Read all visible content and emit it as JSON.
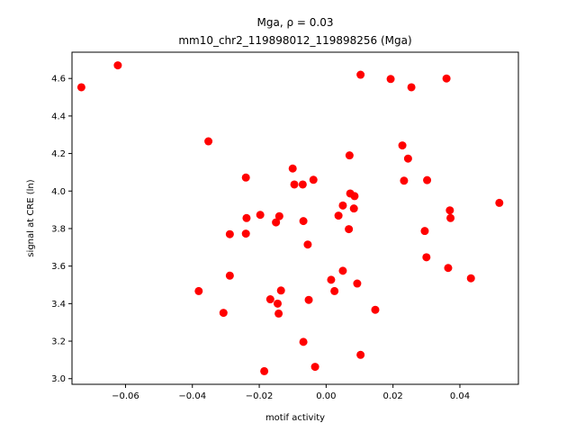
{
  "chart_data": {
    "type": "scatter",
    "title_line1": "Mga, ρ = 0.03",
    "title_line2": "mm10_chr2_119898012_119898256 (Mga)",
    "xlabel": "motif activity",
    "ylabel": "signal at CRE (ln)",
    "xlim": [
      -0.076,
      0.0575
    ],
    "ylim": [
      2.97,
      4.74
    ],
    "xticks": [
      -0.06,
      -0.04,
      -0.02,
      0.0,
      0.02,
      0.04
    ],
    "xtick_labels": [
      "−0.06",
      "−0.04",
      "−0.02",
      "0.00",
      "0.02",
      "0.04"
    ],
    "yticks": [
      3.0,
      3.2,
      3.4,
      3.6,
      3.8,
      4.0,
      4.2,
      4.4,
      4.6
    ],
    "ytick_labels": [
      "3.0",
      "3.2",
      "3.4",
      "3.6",
      "3.8",
      "4.0",
      "4.2",
      "4.4",
      "4.6"
    ],
    "grid": false,
    "marker_color": "#ff0000",
    "points": [
      {
        "x": -0.0732,
        "y": 4.553
      },
      {
        "x": -0.0623,
        "y": 4.67
      },
      {
        "x": -0.0352,
        "y": 4.265
      },
      {
        "x": -0.0381,
        "y": 3.467
      },
      {
        "x": -0.0307,
        "y": 3.351
      },
      {
        "x": -0.0288,
        "y": 3.77
      },
      {
        "x": -0.0288,
        "y": 3.549
      },
      {
        "x": -0.024,
        "y": 4.072
      },
      {
        "x": -0.0238,
        "y": 3.856
      },
      {
        "x": -0.024,
        "y": 3.773
      },
      {
        "x": -0.0197,
        "y": 3.873
      },
      {
        "x": -0.0185,
        "y": 3.04
      },
      {
        "x": -0.0167,
        "y": 3.423
      },
      {
        "x": -0.015,
        "y": 3.833
      },
      {
        "x": -0.0145,
        "y": 3.4
      },
      {
        "x": -0.0142,
        "y": 3.347
      },
      {
        "x": -0.014,
        "y": 3.866
      },
      {
        "x": -0.0135,
        "y": 3.47
      },
      {
        "x": -0.01,
        "y": 4.12
      },
      {
        "x": -0.0095,
        "y": 4.035
      },
      {
        "x": -0.007,
        "y": 4.035
      },
      {
        "x": -0.0068,
        "y": 3.84
      },
      {
        "x": -0.0068,
        "y": 3.196
      },
      {
        "x": -0.0055,
        "y": 3.715
      },
      {
        "x": -0.0052,
        "y": 3.42
      },
      {
        "x": -0.0038,
        "y": 4.06
      },
      {
        "x": -0.0033,
        "y": 3.063
      },
      {
        "x": 0.0015,
        "y": 3.527
      },
      {
        "x": 0.0025,
        "y": 3.467
      },
      {
        "x": 0.0037,
        "y": 3.869
      },
      {
        "x": 0.005,
        "y": 3.923
      },
      {
        "x": 0.005,
        "y": 3.575
      },
      {
        "x": 0.0068,
        "y": 3.797
      },
      {
        "x": 0.007,
        "y": 4.19
      },
      {
        "x": 0.0072,
        "y": 3.987
      },
      {
        "x": 0.0083,
        "y": 3.907
      },
      {
        "x": 0.0085,
        "y": 3.973
      },
      {
        "x": 0.0093,
        "y": 3.507
      },
      {
        "x": 0.0103,
        "y": 4.62
      },
      {
        "x": 0.0103,
        "y": 3.127
      },
      {
        "x": 0.0147,
        "y": 3.367
      },
      {
        "x": 0.0193,
        "y": 4.597
      },
      {
        "x": 0.0228,
        "y": 4.243
      },
      {
        "x": 0.0233,
        "y": 4.055
      },
      {
        "x": 0.0245,
        "y": 4.173
      },
      {
        "x": 0.0255,
        "y": 4.553
      },
      {
        "x": 0.0295,
        "y": 3.787
      },
      {
        "x": 0.03,
        "y": 3.647
      },
      {
        "x": 0.0302,
        "y": 4.058
      },
      {
        "x": 0.036,
        "y": 4.6
      },
      {
        "x": 0.0365,
        "y": 3.59
      },
      {
        "x": 0.037,
        "y": 3.897
      },
      {
        "x": 0.0372,
        "y": 3.856
      },
      {
        "x": 0.0433,
        "y": 3.535
      },
      {
        "x": 0.0518,
        "y": 3.937
      }
    ]
  }
}
